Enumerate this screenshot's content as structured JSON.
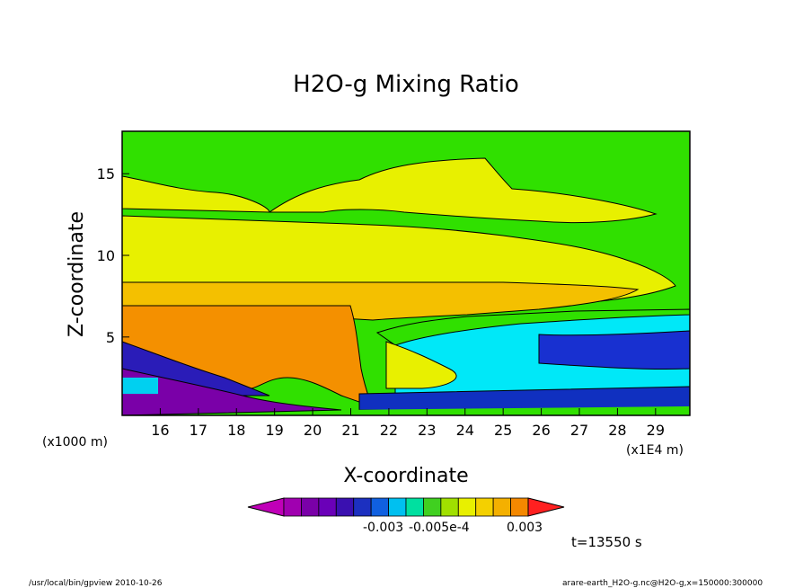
{
  "chart_data": {
    "type": "heatmap",
    "title": "H2O-g Mixing Ratio",
    "xlabel": "X-coordinate",
    "ylabel": "Z-coordinate",
    "x_unit_label": "(x1E4 m)",
    "y_unit_label": "(x1000 m)",
    "x_ticks": [
      "16",
      "17",
      "18",
      "19",
      "20",
      "21",
      "22",
      "23",
      "24",
      "25",
      "26",
      "27",
      "28",
      "29"
    ],
    "y_ticks": [
      "5",
      "10",
      "15"
    ],
    "xlim": [
      15.0,
      29.9
    ],
    "ylim": [
      0.2,
      17.6
    ],
    "colorbar": {
      "labels": [
        "-0.003",
        "-0.005e-4",
        "0.003"
      ],
      "colors": [
        "#c000b8",
        "#a000b0",
        "#7a00a8",
        "#6a00b8",
        "#3a10b0",
        "#1c30c0",
        "#1060e0",
        "#00c0f0",
        "#00e0a0",
        "#40d020",
        "#a0e000",
        "#e8f000",
        "#f4d000",
        "#f4b000",
        "#f48800",
        "#ff2020"
      ]
    },
    "time_label": "t=13550 s",
    "footer_left": "/usr/local/bin/gpview  2010-10-26",
    "footer_right": "arare-earth_H2O-g.nc@H2O-g,x=150000:300000"
  }
}
